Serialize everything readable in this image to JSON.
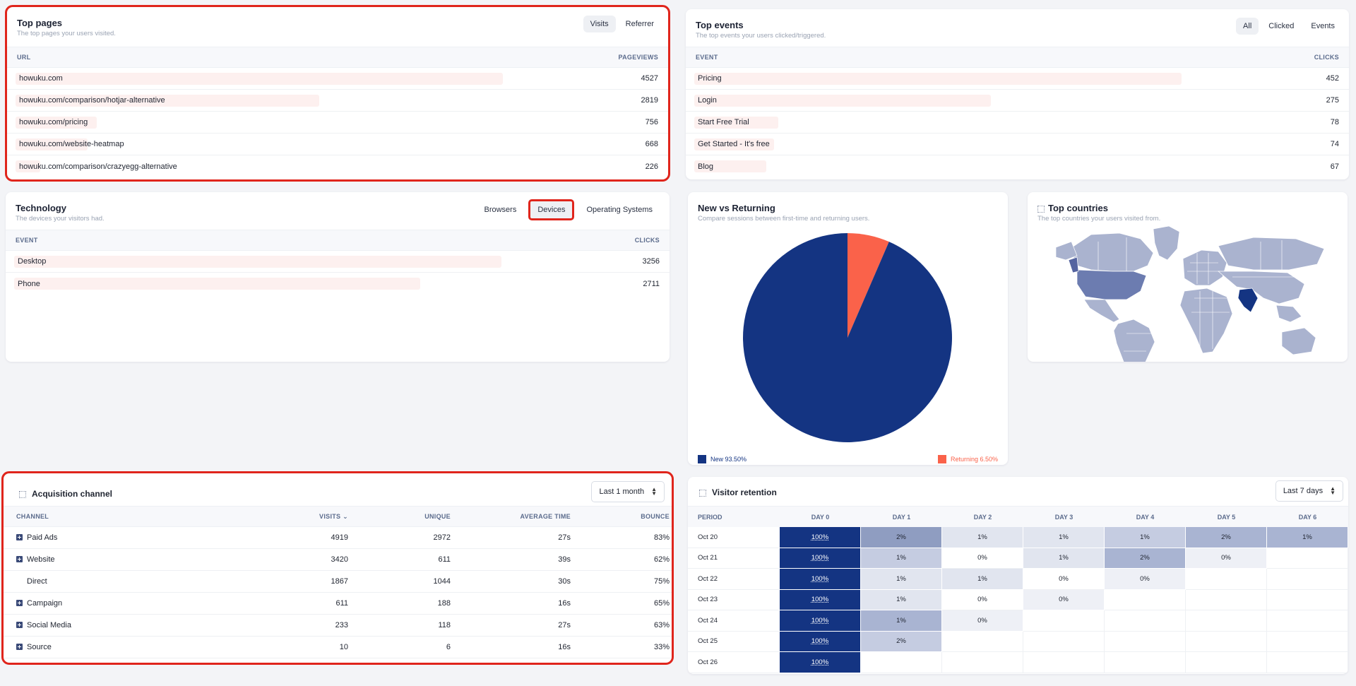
{
  "top_pages": {
    "title": "Top pages",
    "subtitle": "The top pages your users visited.",
    "tabs": [
      "Visits",
      "Referrer"
    ],
    "col_left": "URL",
    "col_right": "PAGEVIEWS",
    "rows": [
      {
        "label": "howuku.com",
        "value": "4527",
        "fraction": 1.0
      },
      {
        "label": "howuku.com/comparison/hotjar-alternative",
        "value": "2819",
        "fraction": 0.623
      },
      {
        "label": "howuku.com/pricing",
        "value": "756",
        "fraction": 0.167
      },
      {
        "label": "howuku.com/website-heatmap",
        "value": "668",
        "fraction": 0.148
      },
      {
        "label": "howuku.com/comparison/crazyegg-alternative",
        "value": "226",
        "fraction": 0.05
      }
    ]
  },
  "top_events": {
    "title": "Top events",
    "subtitle": "The top events your users clicked/triggered.",
    "tabs": [
      "All",
      "Clicked",
      "Events"
    ],
    "col_left": "EVENT",
    "col_right": "CLICKS",
    "rows": [
      {
        "label": "Pricing",
        "value": "452",
        "fraction": 1.0
      },
      {
        "label": "Login",
        "value": "275",
        "fraction": 0.608
      },
      {
        "label": "Start Free Trial",
        "value": "78",
        "fraction": 0.173
      },
      {
        "label": "Get Started - It's free",
        "value": "74",
        "fraction": 0.164
      },
      {
        "label": "Blog",
        "value": "67",
        "fraction": 0.148
      }
    ]
  },
  "technology": {
    "title": "Technology",
    "subtitle": "The devices your visitors had.",
    "tabs": [
      "Browsers",
      "Devices",
      "Operating Systems"
    ],
    "col_left": "EVENT",
    "col_right": "CLICKS",
    "rows": [
      {
        "label": "Desktop",
        "value": "3256",
        "fraction": 1.0
      },
      {
        "label": "Phone",
        "value": "2711",
        "fraction": 0.833
      }
    ]
  },
  "new_vs_returning": {
    "title": "New vs Returning",
    "subtitle": "Compare sessions between first-time and returning users.",
    "legend_new": "New 93.50%",
    "legend_returning": "Returning 6.50%"
  },
  "top_countries": {
    "title": "Top countries",
    "subtitle": "The top countries your users visited from."
  },
  "acquisition": {
    "title": "Acquisition channel",
    "range": "Last 1 month",
    "headers": [
      "CHANNEL",
      "VISITS",
      "UNIQUE",
      "AVERAGE TIME",
      "BOUNCE"
    ],
    "rows": [
      {
        "channel": "Paid Ads",
        "visits": "4919",
        "unique": "2972",
        "avg": "27s",
        "bounce": "83%",
        "expandable": true
      },
      {
        "channel": "Website",
        "visits": "3420",
        "unique": "611",
        "avg": "39s",
        "bounce": "62%",
        "expandable": true
      },
      {
        "channel": "Direct",
        "visits": "1867",
        "unique": "1044",
        "avg": "30s",
        "bounce": "75%",
        "expandable": false
      },
      {
        "channel": "Campaign",
        "visits": "611",
        "unique": "188",
        "avg": "16s",
        "bounce": "65%",
        "expandable": true
      },
      {
        "channel": "Social Media",
        "visits": "233",
        "unique": "118",
        "avg": "27s",
        "bounce": "63%",
        "expandable": true
      },
      {
        "channel": "Source",
        "visits": "10",
        "unique": "6",
        "avg": "16s",
        "bounce": "33%",
        "expandable": true
      }
    ]
  },
  "retention": {
    "title": "Visitor retention",
    "range": "Last 7 days",
    "headers": [
      "PERIOD",
      "DAY 0",
      "DAY 1",
      "DAY 2",
      "DAY 3",
      "DAY 4",
      "DAY 5",
      "DAY 6"
    ],
    "rows": [
      {
        "period": "Oct 20",
        "cells": [
          "100%",
          "2%",
          "1%",
          "1%",
          "1%",
          "2%",
          "1%"
        ],
        "levels": [
          9,
          5,
          2,
          2,
          3,
          4,
          4
        ]
      },
      {
        "period": "Oct 21",
        "cells": [
          "100%",
          "1%",
          "0%",
          "1%",
          "2%",
          "0%",
          null
        ],
        "levels": [
          9,
          3,
          0,
          2,
          4,
          1,
          -1
        ]
      },
      {
        "period": "Oct 22",
        "cells": [
          "100%",
          "1%",
          "1%",
          "0%",
          "0%",
          null,
          null
        ],
        "levels": [
          9,
          2,
          2,
          0,
          1,
          -1,
          -1
        ]
      },
      {
        "period": "Oct 23",
        "cells": [
          "100%",
          "1%",
          "0%",
          "0%",
          null,
          null,
          null
        ],
        "levels": [
          9,
          2,
          0,
          1,
          -1,
          -1,
          -1
        ]
      },
      {
        "period": "Oct 24",
        "cells": [
          "100%",
          "1%",
          "0%",
          null,
          null,
          null,
          null
        ],
        "levels": [
          9,
          4,
          1,
          -1,
          -1,
          -1,
          -1
        ]
      },
      {
        "period": "Oct 25",
        "cells": [
          "100%",
          "2%",
          null,
          null,
          null,
          null,
          null
        ],
        "levels": [
          9,
          3,
          -1,
          -1,
          -1,
          -1,
          -1
        ]
      },
      {
        "period": "Oct 26",
        "cells": [
          "100%",
          null,
          null,
          null,
          null,
          null,
          null
        ],
        "levels": [
          9,
          -1,
          -1,
          -1,
          -1,
          -1,
          -1
        ]
      }
    ]
  },
  "colors": {
    "navy": "#143482",
    "coral": "#fa624a",
    "highlight_box": "#e0251c",
    "bar_bg": "#fdf0ef"
  }
}
